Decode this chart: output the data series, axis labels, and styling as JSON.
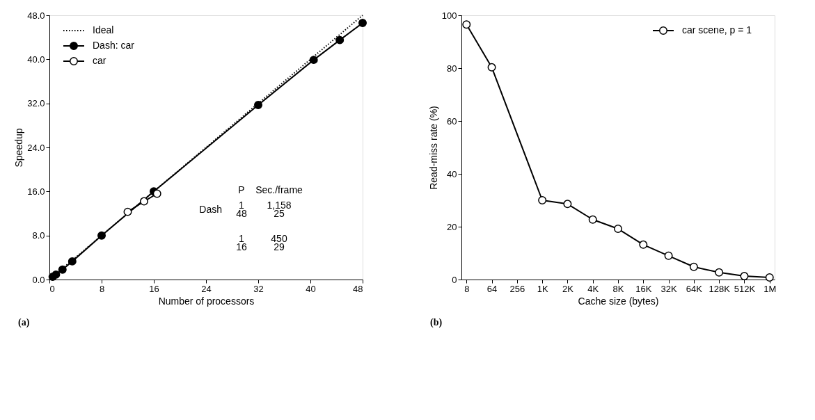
{
  "chart_data": [
    {
      "type": "line",
      "xlabel": "Number of processors",
      "ylabel": "Speedup",
      "xlim": [
        0,
        48
      ],
      "xticks": [
        0,
        8,
        16,
        24,
        32,
        40,
        48
      ],
      "ylim": [
        0,
        48
      ],
      "yticks": [
        {
          "value": 0,
          "label": "0.0"
        },
        {
          "value": 8,
          "label": "8.0"
        },
        {
          "value": 16,
          "label": "16.0"
        },
        {
          "value": 24,
          "label": "24.0"
        },
        {
          "value": 32,
          "label": "32.0"
        },
        {
          "value": 40,
          "label": "40.0"
        },
        {
          "value": 48,
          "label": "48.0"
        }
      ],
      "grid": false,
      "legend": "top left",
      "series": [
        {
          "name": "Ideal",
          "color": "#000000",
          "line_style": "dotted",
          "marker": "none",
          "x": [
            0,
            48
          ],
          "values": [
            0,
            48
          ]
        },
        {
          "name": "Dash: car",
          "color": "#000000",
          "line_style": "solid",
          "marker": "circle",
          "x": [
            0.5,
            1,
            2,
            3.5,
            8,
            16,
            32,
            40.5,
            44.5,
            48
          ],
          "values": [
            0.5,
            0.9,
            1.8,
            3.3,
            8,
            16,
            31.7,
            39.9,
            43.5,
            46.6
          ]
        },
        {
          "name": "car",
          "color": "#000000",
          "line_style": "solid",
          "marker": "circle",
          "x": [
            12,
            14.5,
            16.5
          ],
          "values": [
            12.3,
            14.2,
            15.6
          ]
        }
      ],
      "annotations": [
        "P",
        "Sec./frame",
        "Dash",
        "1",
        "48",
        "1,158",
        "25",
        "1",
        "16",
        "450",
        "29",
        "(a)"
      ]
    },
    {
      "type": "line",
      "xlabel": "Cache size (bytes)",
      "ylabel": "Read-miss rate (%)",
      "ylim": [
        0,
        100
      ],
      "yticks": [
        0,
        20,
        40,
        60,
        80,
        100
      ],
      "categories": [
        "8",
        "64",
        "256",
        "1K",
        "2K",
        "4K",
        "8K",
        "16K",
        "32K",
        "64K",
        "128K",
        "512K",
        "1M"
      ],
      "grid": false,
      "legend": "top right",
      "series": [
        {
          "name": "car scene, p = 1",
          "color": "#000000",
          "line_style": "solid",
          "marker": "circle",
          "values": [
            96.5,
            80.3,
            null,
            30,
            28.6,
            22.7,
            19.2,
            13.2,
            9,
            4.8,
            2.7,
            1.3,
            0.8
          ]
        }
      ],
      "annotations": [
        "(b)"
      ]
    }
  ]
}
